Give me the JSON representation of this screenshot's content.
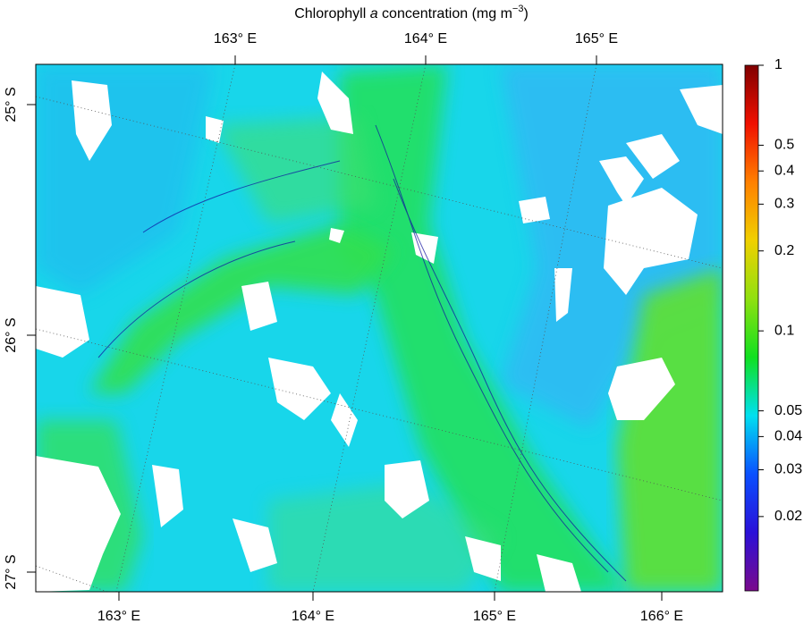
{
  "chart_data": {
    "type": "map",
    "title": {
      "start": "Chlorophyll ",
      "italic": "a",
      "middle": " concentration (mg m",
      "superscript": "−3",
      "end": ")"
    },
    "top_labels": [
      "163° E",
      "164° E",
      "165° E"
    ],
    "bottom_labels": [
      "163° E",
      "164° E",
      "165° E",
      "166° E"
    ],
    "left_labels": [
      "25° S",
      "26° S",
      "27° S"
    ],
    "colorbar": {
      "log": true,
      "lim": [
        0.0105,
        1
      ],
      "ticks": [
        1,
        0.5,
        0.4,
        0.3,
        0.2,
        0.1,
        0.05,
        0.04,
        0.03,
        0.02
      ],
      "colors": [
        "#7a0a8c",
        "#2a10d8",
        "#0a50ff",
        "#00e0f0",
        "#10e020",
        "#90e010",
        "#f0d000",
        "#ff8000",
        "#f01000",
        "#800000"
      ]
    }
  }
}
